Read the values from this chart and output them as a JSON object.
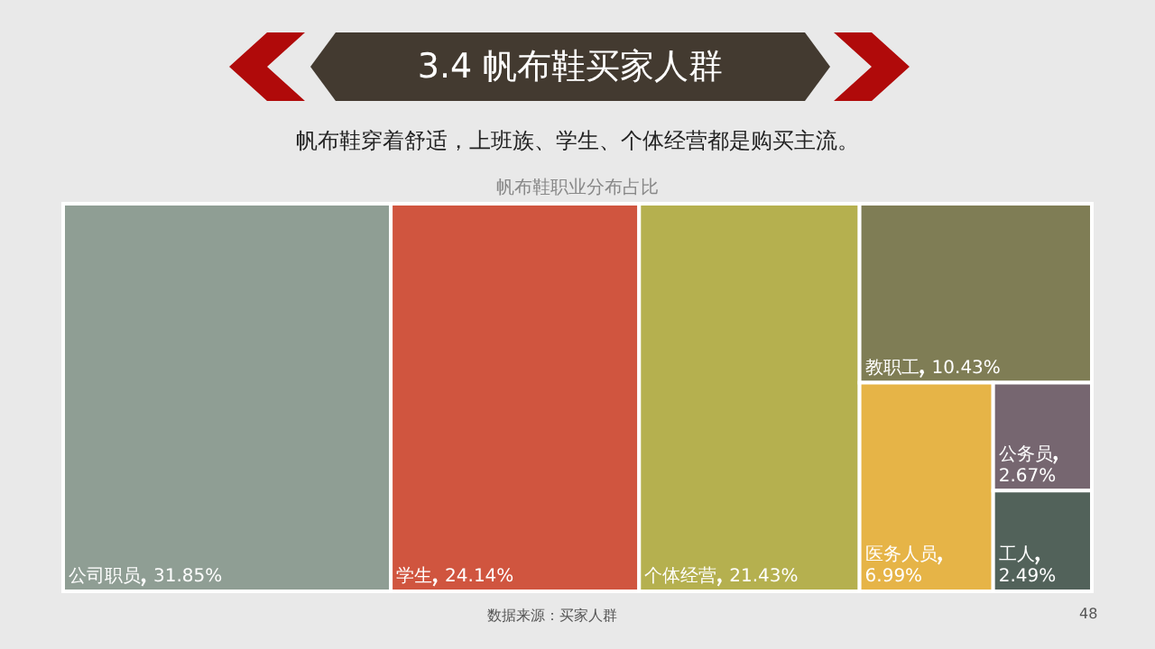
{
  "chart_data": {
    "type": "other",
    "title": "3.4 帆布鞋买家人群",
    "subtitle": "帆布鞋穿着舒适，上班族、学生、个体经营都是购买主流。",
    "legend_title": "帆布鞋职业分布占比",
    "categories": [
      "公司职员",
      "学生",
      "个体经营",
      "教职工",
      "医务人员",
      "公务员",
      "工人"
    ],
    "values": [
      31.85,
      24.14,
      21.43,
      10.43,
      6.99,
      2.67,
      2.49
    ],
    "value_labels": [
      "31.85%",
      "24.14%",
      "21.43%",
      "10.43%",
      "6.99%",
      "2.67%",
      "2.49%"
    ],
    "colors": [
      "#8f9e94",
      "#d0553f",
      "#b5b04f",
      "#7f7d55",
      "#e6b447",
      "#766670",
      "#52625a"
    ],
    "annotations": [
      "数据来源：买家人群",
      "48"
    ]
  }
}
